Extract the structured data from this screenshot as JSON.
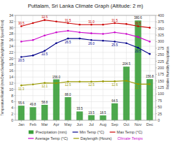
{
  "chart_data": {
    "type": "bar",
    "title": "Puttalam, Sri Lanka Climate Graph (Altitude: 2 m)",
    "categories": [
      "Jan",
      "Feb",
      "Mar",
      "Apr",
      "May",
      "Jun",
      "Jul",
      "Aug",
      "Sep",
      "Oct",
      "Nov",
      "Dec"
    ],
    "series": [
      {
        "name": "Precipitation (mm)",
        "type": "bar",
        "axis": "y2",
        "color": "#3a9e3a",
        "values": [
          55.6,
          49.8,
          58.8,
          156.0,
          88.0,
          33.5,
          19.5,
          18.5,
          64.5,
          204.5,
          380.6,
          156.8
        ],
        "value_labels": [
          "55.6",
          "49.8",
          "58.8",
          "156.0",
          "88.0",
          "33.5",
          "19.5",
          "18.5",
          "64.5",
          "204.5",
          "380.6",
          "156.8"
        ]
      },
      {
        "name": "Min Temp (°C)",
        "type": "line",
        "color": "#00008b",
        "marker": "circle",
        "values": [
          20.5,
          21.0,
          22.5,
          25.0,
          26.5,
          26.5,
          26.0,
          25.8,
          25.5,
          25.0,
          23.5,
          21.5
        ],
        "value_labels": [
          "20.5",
          null,
          "22.5",
          null,
          "26.5",
          null,
          "26.0",
          null,
          "25.5",
          null,
          "23.5",
          null
        ]
      },
      {
        "name": "Max Temp (°C)",
        "type": "line",
        "color": "#cc0000",
        "marker": "circle",
        "values": [
          30.5,
          31.5,
          32.5,
          32.0,
          31.5,
          31.0,
          31.0,
          31.0,
          31.5,
          31.2,
          30.5,
          30.0
        ],
        "value_labels": [
          "30.5",
          null,
          "32.5",
          null,
          "31.5",
          null,
          "31.0",
          null,
          "31.5",
          null,
          "30.5",
          null
        ]
      },
      {
        "name": "Average Temp (°C)",
        "type": "line",
        "color": "#cc00cc",
        "marker": "circle",
        "values": [
          25.5,
          26.0,
          27.5,
          28.5,
          29.0,
          28.5,
          28.2,
          28.0,
          28.5,
          28.0,
          27.0,
          25.5
        ]
      },
      {
        "name": "Daylength (Hours)",
        "type": "line",
        "color": "#999900",
        "marker": "circle",
        "values": [
          11.3,
          11.6,
          12.1,
          12.0,
          12.5,
          12.5,
          12.5,
          12.6,
          12.6,
          12.8,
          11.7,
          11.7
        ],
        "value_labels": [
          "11.3",
          null,
          "12.1",
          null,
          "12.5",
          null,
          "12.5",
          null,
          "12.6",
          null,
          "11.7",
          null
        ]
      }
    ],
    "ylabel": "Temperature/Rainfall (mm/Days/Sunlight/Daylight/Wind Speed/Frost)",
    "y2label": "Relative Humidity/Precipitation",
    "ylim": [
      0,
      34
    ],
    "yticks": [
      0,
      2,
      4,
      6,
      8,
      10,
      12,
      14,
      16,
      18,
      20,
      22,
      24,
      26,
      28,
      30,
      32,
      34
    ],
    "y2lim": [
      0,
      400
    ],
    "y2ticks": [
      0,
      25,
      50,
      75,
      100,
      125,
      150,
      175,
      200,
      225,
      250,
      275,
      300,
      325,
      350,
      375,
      400
    ],
    "grid": true,
    "data_labels": true,
    "legend": "bottom",
    "annotations": [
      {
        "text": "Climate Temps",
        "color": "#cc00cc"
      }
    ]
  }
}
